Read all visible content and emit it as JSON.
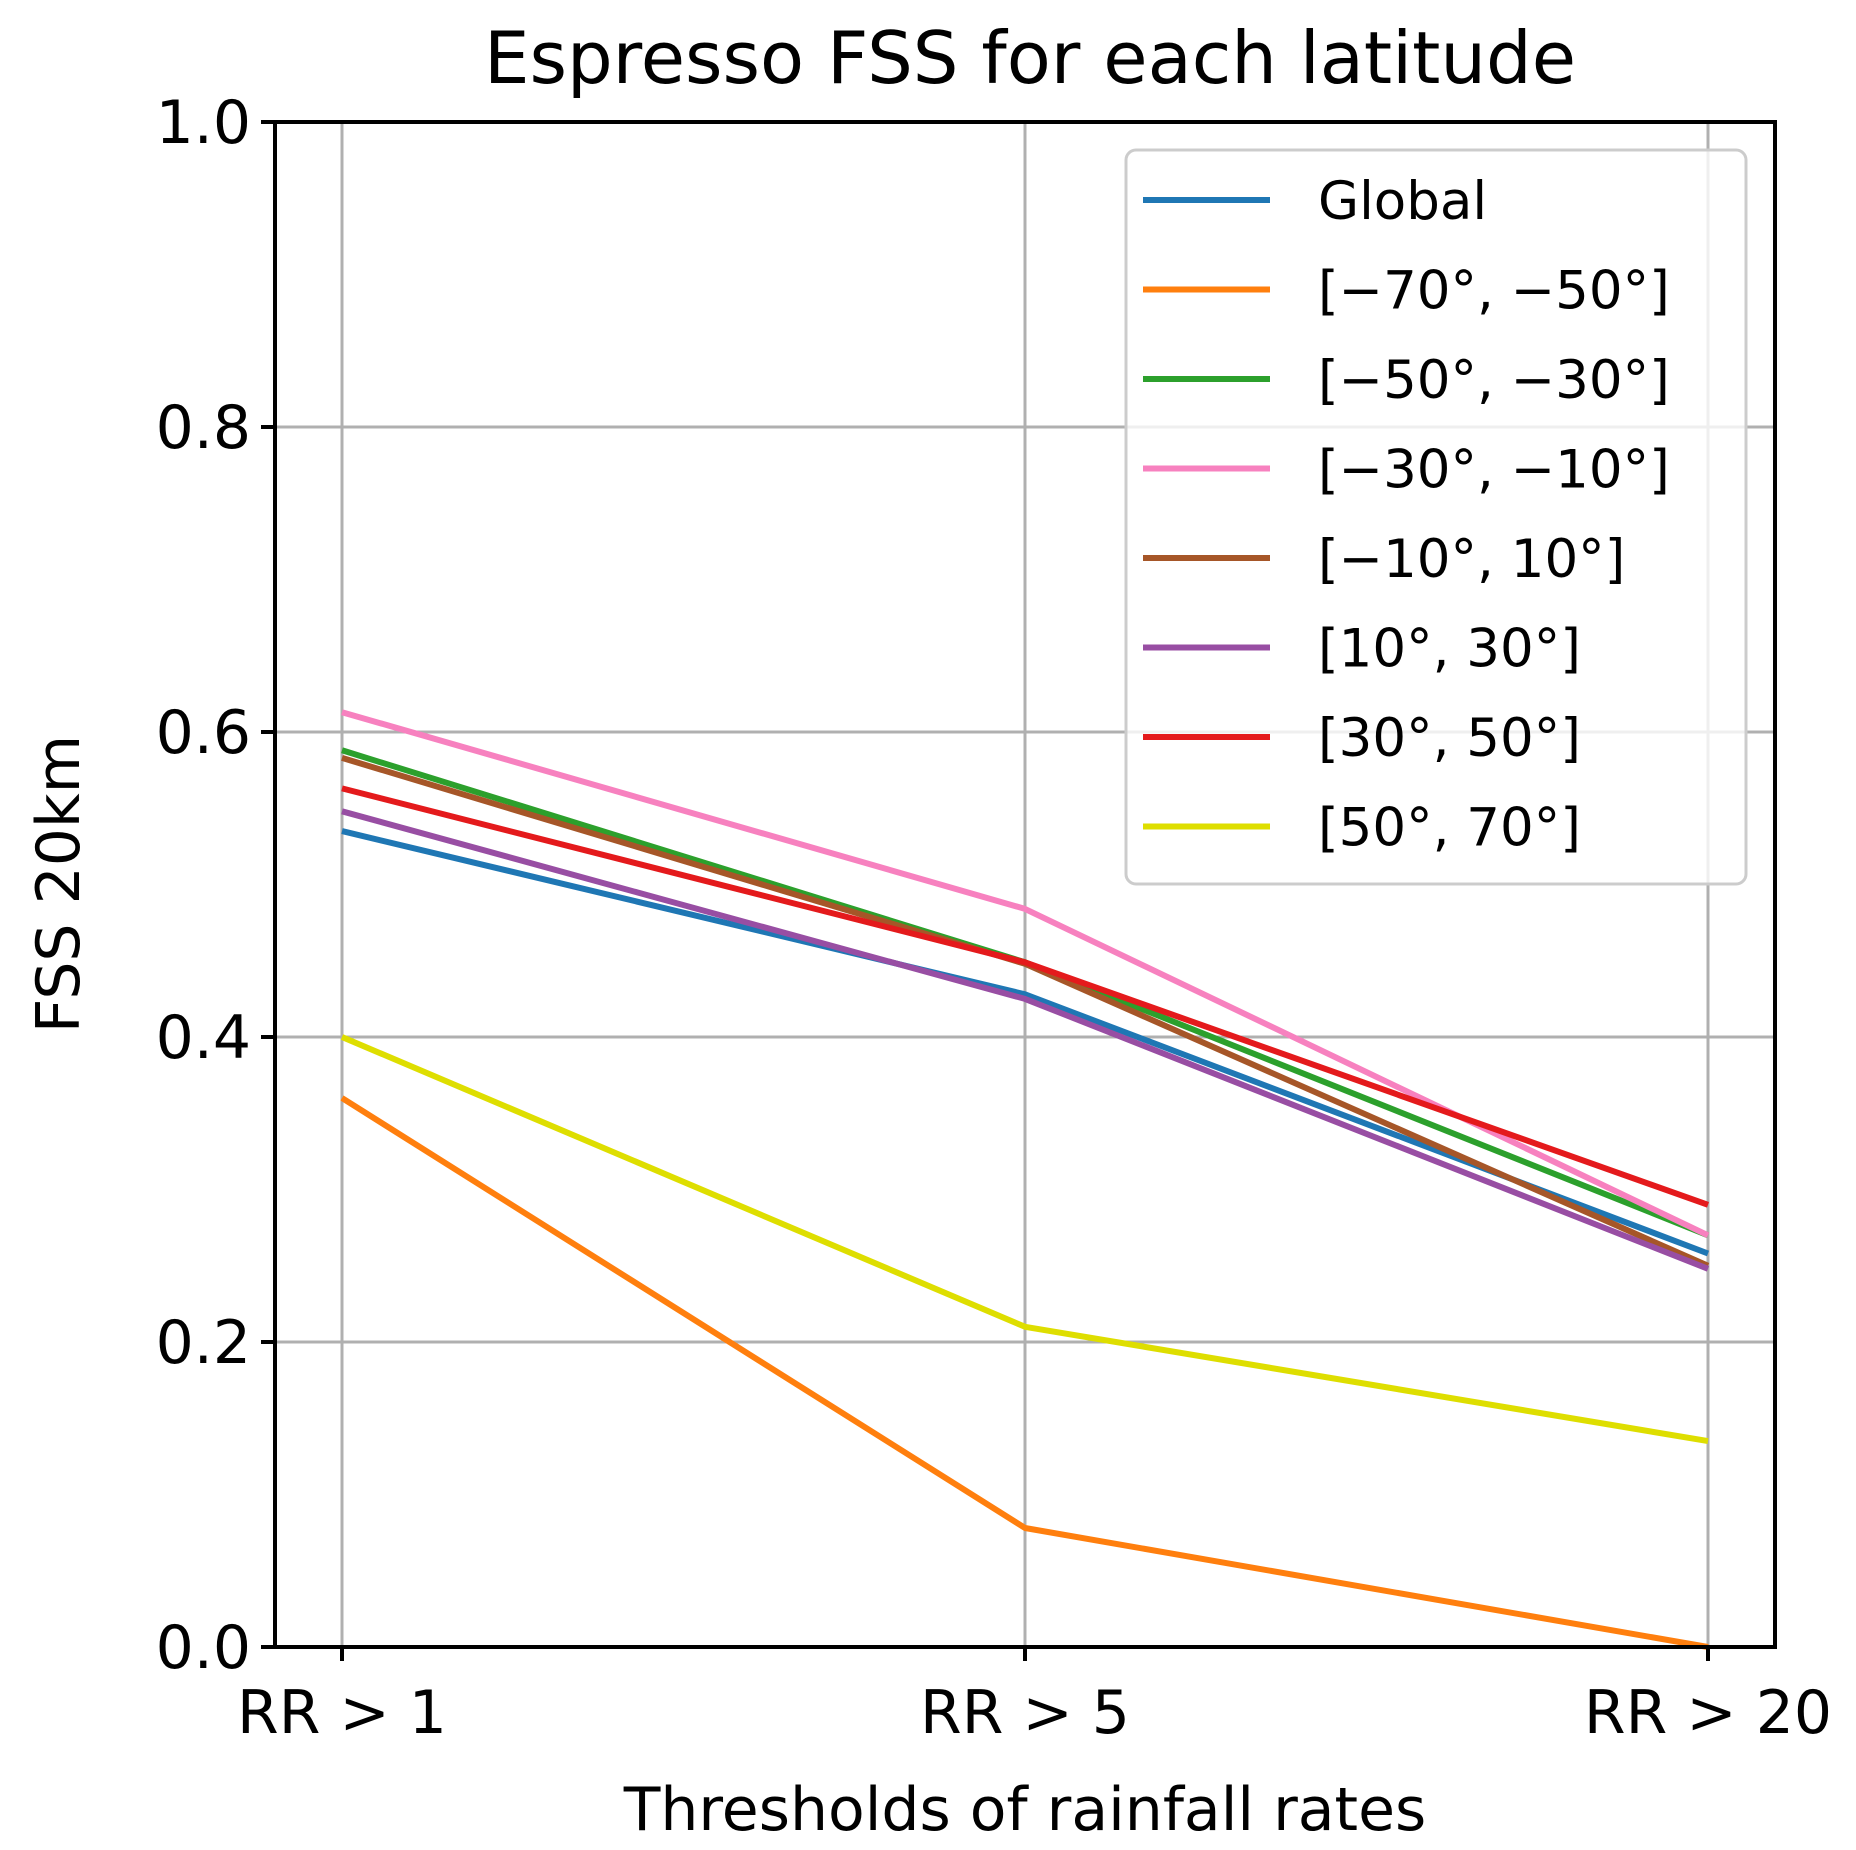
{
  "chart_data": {
    "type": "line",
    "title": "Espresso FSS for each latitude",
    "xlabel": "Thresholds of rainfall rates",
    "ylabel": "FSS 20km",
    "categories": [
      "RR > 1",
      "RR > 5",
      "RR > 20"
    ],
    "ylim": [
      0.0,
      1.0
    ],
    "yticks": [
      "0.0",
      "0.2",
      "0.4",
      "0.6",
      "0.8",
      "1.0"
    ],
    "ytick_values": [
      0.0,
      0.2,
      0.4,
      0.6,
      0.8,
      1.0
    ],
    "grid": true,
    "legend_position": "upper right",
    "series": [
      {
        "name": "Global",
        "color": "#1f77b4",
        "values": [
          0.535,
          0.428,
          0.258
        ]
      },
      {
        "name": "[−70°, −50°]",
        "color": "#ff7f0e",
        "values": [
          0.36,
          0.078,
          0.0
        ]
      },
      {
        "name": "[−50°, −30°]",
        "color": "#2ca02c",
        "values": [
          0.588,
          0.449,
          0.27
        ]
      },
      {
        "name": "[−30°, −10°]",
        "color": "#f781bf",
        "values": [
          0.613,
          0.484,
          0.27
        ]
      },
      {
        "name": "[−10°, 10°]",
        "color": "#a65628",
        "values": [
          0.583,
          0.448,
          0.25
        ]
      },
      {
        "name": "[10°, 30°]",
        "color": "#984ea3",
        "values": [
          0.548,
          0.425,
          0.248
        ]
      },
      {
        "name": "[30°, 50°]",
        "color": "#e41a1c",
        "values": [
          0.563,
          0.449,
          0.29
        ]
      },
      {
        "name": "[50°, 70°]",
        "color": "#dede00",
        "values": [
          0.4,
          0.21,
          0.135
        ]
      }
    ]
  }
}
